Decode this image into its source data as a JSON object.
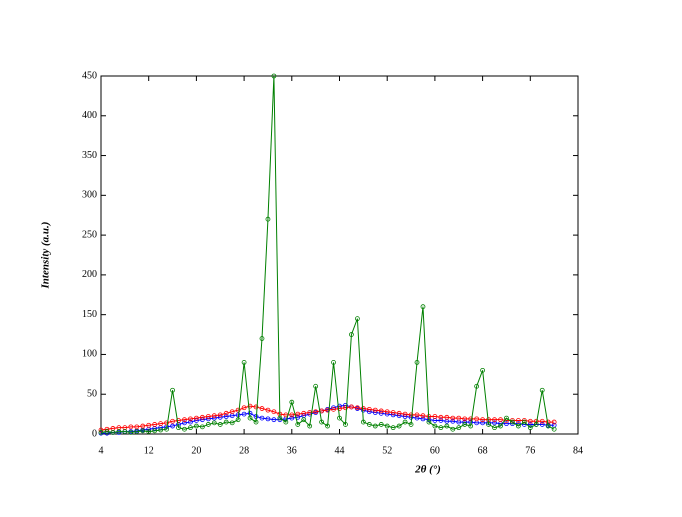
{
  "chart_data": {
    "type": "line",
    "ylabel": "Intensity (a.u.)",
    "xlabel": "2θ (°)",
    "x": [
      4,
      5,
      6,
      7,
      8,
      9,
      10,
      11,
      12,
      13,
      14,
      15,
      16,
      17,
      18,
      19,
      20,
      21,
      22,
      23,
      24,
      25,
      26,
      27,
      28,
      29,
      30,
      31,
      32,
      33,
      34,
      35,
      36,
      37,
      38,
      39,
      40,
      41,
      42,
      43,
      44,
      45,
      46,
      47,
      48,
      49,
      50,
      51,
      52,
      53,
      54,
      55,
      56,
      57,
      58,
      59,
      60,
      61,
      62,
      63,
      64,
      65,
      66,
      67,
      68,
      69,
      70,
      71,
      72,
      73,
      74,
      75,
      76,
      77,
      78,
      79,
      80
    ],
    "series": [
      {
        "color": "#0000ff",
        "values": [
          1,
          1,
          2,
          2,
          3,
          3,
          4,
          5,
          6,
          7,
          8,
          9,
          10,
          12,
          14,
          15,
          17,
          18,
          19,
          20,
          21,
          22,
          23,
          24,
          25,
          26,
          22,
          20,
          19,
          18,
          18,
          19,
          20,
          21,
          23,
          25,
          27,
          29,
          31,
          33,
          35,
          36,
          34,
          32,
          30,
          28,
          27,
          26,
          25,
          24,
          23,
          22,
          21,
          20,
          19,
          18,
          17,
          17,
          16,
          16,
          15,
          15,
          15,
          14,
          14,
          14,
          14,
          13,
          13,
          13,
          13,
          12,
          12,
          12,
          12,
          11,
          11
        ]
      },
      {
        "color": "#ff0000",
        "values": [
          5,
          6,
          7,
          8,
          8,
          9,
          9,
          10,
          11,
          12,
          13,
          14,
          16,
          17,
          18,
          19,
          20,
          21,
          22,
          23,
          24,
          26,
          28,
          30,
          33,
          35,
          34,
          32,
          30,
          28,
          25,
          24,
          24,
          25,
          26,
          27,
          28,
          29,
          30,
          31,
          32,
          33,
          34,
          33,
          32,
          31,
          30,
          29,
          28,
          27,
          26,
          25,
          24,
          24,
          23,
          22,
          22,
          21,
          21,
          20,
          20,
          19,
          19,
          19,
          18,
          18,
          18,
          18,
          17,
          17,
          17,
          17,
          16,
          16,
          16,
          15,
          15
        ]
      },
      {
        "color": "#008000",
        "values": [
          2,
          3,
          2,
          3,
          3,
          2,
          3,
          4,
          3,
          4,
          5,
          6,
          55,
          8,
          6,
          8,
          10,
          9,
          12,
          14,
          12,
          15,
          14,
          18,
          90,
          20,
          15,
          120,
          270,
          450,
          20,
          15,
          40,
          12,
          18,
          10,
          60,
          15,
          10,
          90,
          20,
          12,
          125,
          145,
          15,
          12,
          10,
          12,
          10,
          8,
          10,
          15,
          12,
          90,
          160,
          15,
          10,
          8,
          10,
          6,
          8,
          12,
          10,
          60,
          80,
          12,
          8,
          10,
          20,
          15,
          10,
          15,
          8,
          12,
          55,
          10,
          6
        ]
      }
    ],
    "xlim": [
      4,
      84
    ],
    "xticks": [
      4,
      12,
      20,
      28,
      36,
      44,
      52,
      60,
      68,
      76,
      84
    ],
    "ylim": [
      0,
      450
    ],
    "yticks": [
      0,
      50,
      100,
      150,
      200,
      250,
      300,
      350,
      400,
      450
    ]
  }
}
